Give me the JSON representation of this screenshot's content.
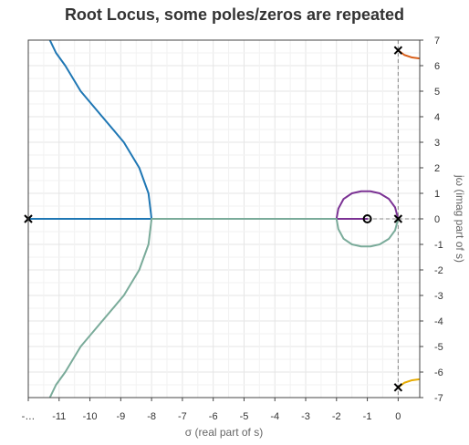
{
  "chart_data": {
    "type": "line",
    "title": "Root Locus, some poles/zeros are repeated",
    "xlabel": "σ (real part of s)",
    "ylabel": "jω (imag part of s)",
    "xlim": [
      -12,
      0.7
    ],
    "ylim": [
      -7,
      7
    ],
    "x_ticks": [
      -12,
      -11,
      -10,
      -9,
      -8,
      -7,
      -6,
      -5,
      -4,
      -3,
      -2,
      -1,
      0
    ],
    "x_tick_labels": [
      "-…",
      "-11",
      "-10",
      "-9",
      "-8",
      "-7",
      "-6",
      "-5",
      "-4",
      "-3",
      "-2",
      "-1",
      "0"
    ],
    "y_ticks": [
      7,
      6,
      5,
      4,
      3,
      2,
      1,
      0,
      -1,
      -2,
      -3,
      -4,
      -5,
      -6,
      -7
    ],
    "y_tick_labels": [
      "7",
      "6",
      "5",
      "4",
      "3",
      "2",
      "1",
      "0",
      "-1",
      "-2",
      "-3",
      "-4",
      "-5",
      "-6",
      "-7"
    ],
    "grid": true,
    "reference_lines": {
      "imag_axis_x": 0,
      "real_axis_y": 0,
      "style": "dashed"
    },
    "colors": {
      "blue": "#1f77b4",
      "teal": "#7aab9a",
      "purple": "#7b3294",
      "orange": "#d95f1a",
      "gold": "#e6ab02",
      "grid": "#e5e5e5",
      "frame": "#444444"
    },
    "poles": [
      {
        "x": -12,
        "y": 0
      },
      {
        "x": 0,
        "y": 0
      },
      {
        "x": 0,
        "y": 6.6
      },
      {
        "x": 0,
        "y": -6.6
      }
    ],
    "zeros": [
      {
        "x": -1,
        "y": 0
      }
    ],
    "series": [
      {
        "name": "branch-left-upper",
        "color": "blue",
        "points": [
          [
            -12,
            0
          ],
          [
            -8,
            0
          ],
          [
            -8.1,
            1.0
          ],
          [
            -8.4,
            2.0
          ],
          [
            -8.9,
            3.0
          ],
          [
            -9.6,
            4.0
          ],
          [
            -10.3,
            5.0
          ],
          [
            -10.8,
            6.0
          ],
          [
            -11.1,
            6.5
          ],
          [
            -11.3,
            7.0
          ]
        ]
      },
      {
        "name": "branch-left-lower",
        "color": "teal",
        "points": [
          [
            -2,
            0
          ],
          [
            -8,
            0
          ],
          [
            -8.1,
            -1.0
          ],
          [
            -8.4,
            -2.0
          ],
          [
            -8.9,
            -3.0
          ],
          [
            -9.6,
            -4.0
          ],
          [
            -10.3,
            -5.0
          ],
          [
            -10.8,
            -6.0
          ],
          [
            -11.1,
            -6.5
          ],
          [
            -11.3,
            -7.0
          ]
        ]
      },
      {
        "name": "branch-circle-upper",
        "color": "purple",
        "points": [
          [
            -1,
            0
          ],
          [
            -2,
            0
          ],
          [
            -1.94,
            0.4
          ],
          [
            -1.77,
            0.78
          ],
          [
            -1.5,
            1.0
          ],
          [
            -1.2,
            1.08
          ],
          [
            -0.9,
            1.08
          ],
          [
            -0.6,
            1.0
          ],
          [
            -0.3,
            0.78
          ],
          [
            -0.1,
            0.45
          ],
          [
            0,
            0
          ]
        ]
      },
      {
        "name": "branch-circle-lower",
        "color": "teal",
        "points": [
          [
            0,
            0
          ],
          [
            -0.1,
            -0.45
          ],
          [
            -0.3,
            -0.78
          ],
          [
            -0.6,
            -1.0
          ],
          [
            -0.9,
            -1.08
          ],
          [
            -1.2,
            -1.08
          ],
          [
            -1.5,
            -1.0
          ],
          [
            -1.77,
            -0.78
          ],
          [
            -1.94,
            -0.4
          ],
          [
            -2,
            0
          ]
        ]
      },
      {
        "name": "branch-upper-right",
        "color": "orange",
        "points": [
          [
            0,
            6.6
          ],
          [
            0.2,
            6.42
          ],
          [
            0.45,
            6.32
          ],
          [
            0.7,
            6.28
          ]
        ]
      },
      {
        "name": "branch-lower-right",
        "color": "gold",
        "points": [
          [
            0,
            -6.6
          ],
          [
            0.2,
            -6.42
          ],
          [
            0.45,
            -6.32
          ],
          [
            0.7,
            -6.28
          ]
        ]
      }
    ]
  }
}
